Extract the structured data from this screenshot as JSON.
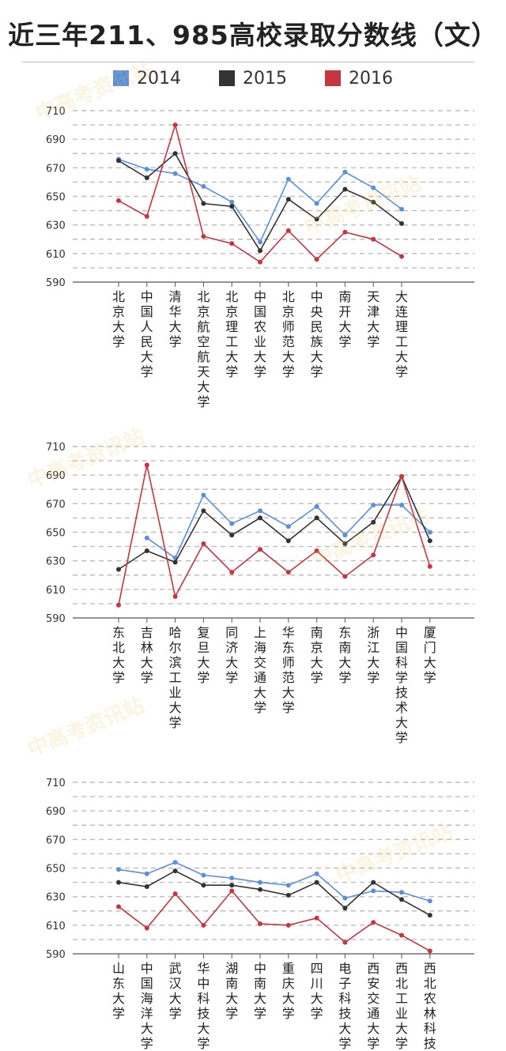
{
  "title": "近三年211、985高校录取分数线（文）",
  "colors": {
    "y2014": "#5b8fde",
    "y2015": "#333333",
    "y2016": "#c8343f",
    "grid": "#bdbdbd"
  },
  "legend": [
    {
      "label": "2014",
      "color": "#5b8fde"
    },
    {
      "label": "2015",
      "color": "#333333"
    },
    {
      "label": "2016",
      "color": "#c8343f"
    }
  ],
  "watermark": "中高考资讯站",
  "chart_data": [
    {
      "type": "line",
      "yticks": [
        590,
        610,
        630,
        650,
        670,
        690,
        710
      ],
      "ylim": [
        590,
        710
      ],
      "grid": true,
      "categories": [
        "北京大学",
        "中国人民大学",
        "清华大学",
        "北京航空航天大学",
        "北京理工大学",
        "中国农业大学",
        "北京师范大学",
        "中央民族大学",
        "南开大学",
        "天津大学",
        "大连理工大学"
      ],
      "series": [
        {
          "name": "2014",
          "values": [
            676,
            669,
            666,
            657,
            646,
            618,
            662,
            645,
            667,
            656,
            641
          ]
        },
        {
          "name": "2015",
          "values": [
            675,
            663,
            680,
            645,
            643,
            612,
            648,
            634,
            655,
            646,
            631
          ]
        },
        {
          "name": "2016",
          "values": [
            647,
            636,
            700,
            622,
            617,
            604,
            626,
            606,
            625,
            620,
            608
          ]
        }
      ]
    },
    {
      "type": "line",
      "yticks": [
        590,
        610,
        630,
        650,
        670,
        690,
        710
      ],
      "ylim": [
        590,
        710
      ],
      "grid": true,
      "categories": [
        "东北大学",
        "吉林大学",
        "哈尔滨工业大学",
        "复旦大学",
        "同济大学",
        "上海交通大学",
        "华东师范大学",
        "南京大学",
        "东南大学",
        "浙江大学",
        "中国科学技术大学",
        "厦门大学"
      ],
      "series": [
        {
          "name": "2014",
          "values": [
            null,
            646,
            632,
            676,
            656,
            665,
            654,
            668,
            648,
            669,
            669,
            650
          ]
        },
        {
          "name": "2015",
          "values": [
            624,
            637,
            629,
            665,
            648,
            660,
            644,
            660,
            642,
            657,
            689,
            644
          ]
        },
        {
          "name": "2016",
          "values": [
            599,
            697,
            605,
            642,
            622,
            638,
            622,
            637,
            619,
            634,
            689,
            626
          ]
        }
      ]
    },
    {
      "type": "line",
      "yticks": [
        590,
        610,
        630,
        650,
        670,
        690,
        710
      ],
      "ylim": [
        590,
        710
      ],
      "grid": true,
      "categories": [
        "山东大学",
        "中国海洋大学",
        "武汉大学",
        "华中科技大学",
        "湖南大学",
        "中南大学",
        "重庆大学",
        "四川大学",
        "电子科技大学",
        "西安交通大学",
        "西北工业大学",
        "西北农林科技"
      ],
      "series": [
        {
          "name": "2014",
          "values": [
            649,
            646,
            654,
            645,
            643,
            640,
            638,
            646,
            629,
            634,
            633,
            627
          ]
        },
        {
          "name": "2015",
          "values": [
            640,
            637,
            648,
            638,
            638,
            635,
            631,
            640,
            622,
            640,
            628,
            617
          ]
        },
        {
          "name": "2016",
          "values": [
            623,
            608,
            632,
            610,
            634,
            611,
            610,
            615,
            598,
            612,
            603,
            592
          ]
        }
      ]
    }
  ]
}
